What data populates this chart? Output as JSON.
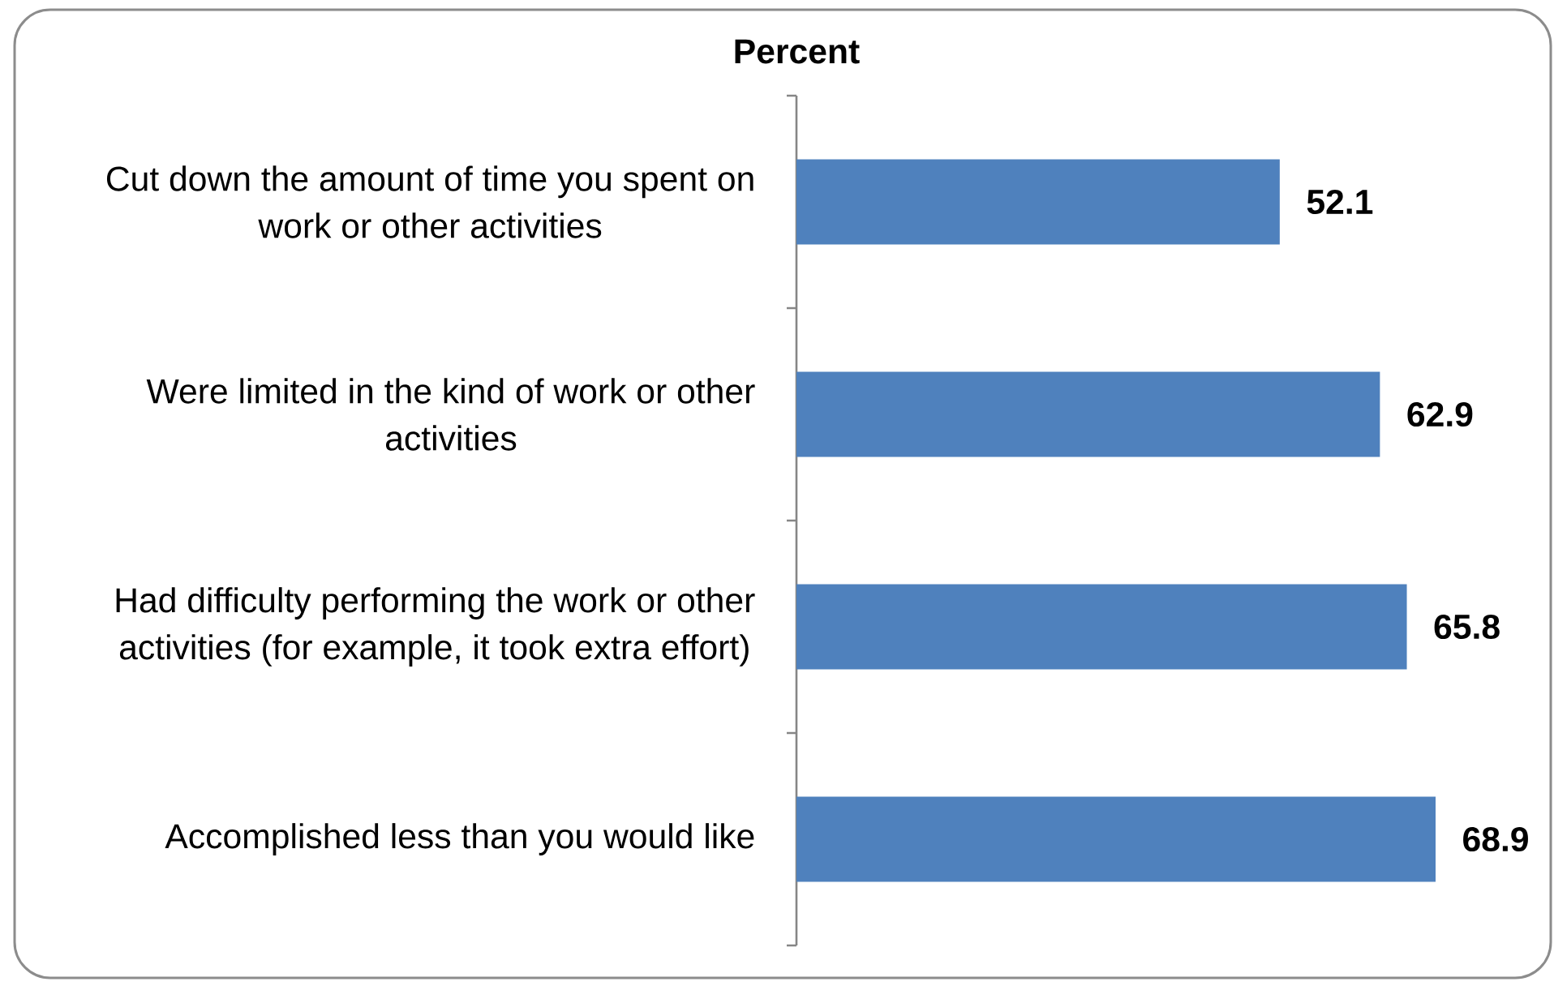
{
  "chart_data": {
    "type": "bar",
    "orientation": "horizontal",
    "title": "Percent",
    "categories": [
      "Cut down the amount of time you spent on work or other activities",
      "Were limited in the kind of work or other activities",
      "Had difficulty performing the work or other activities (for example, it took extra effort)",
      "Accomplished less than you would like"
    ],
    "values": [
      52.1,
      62.9,
      65.8,
      68.9
    ],
    "color": "#4f81bd",
    "data_labels": true,
    "tick_labels": "y"
  }
}
